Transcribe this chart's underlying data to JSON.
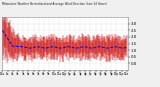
{
  "title": "Milwaukee Weather Normalized and Average Wind Direction (Last 24 Hours)",
  "bg_color": "#f0f0f0",
  "plot_bg": "#ffffff",
  "grid_color": "#bbbbbb",
  "bar_color": "#cc0000",
  "avg_color": "#0000cc",
  "ylim": [
    -0.5,
    3.5
  ],
  "ytick_vals": [
    0,
    0.5,
    1.0,
    1.5,
    2.0,
    2.5,
    3.0
  ],
  "n_points": 288,
  "n_xticks": 25,
  "hours": [
    "12a",
    "1a",
    "2a",
    "3a",
    "4a",
    "5a",
    "6a",
    "7a",
    "8a",
    "9a",
    "10a",
    "11a",
    "12p",
    "1p",
    "2p",
    "3p",
    "4p",
    "5p",
    "6p",
    "7p",
    "8p",
    "9p",
    "10p",
    "11p",
    "12a"
  ]
}
